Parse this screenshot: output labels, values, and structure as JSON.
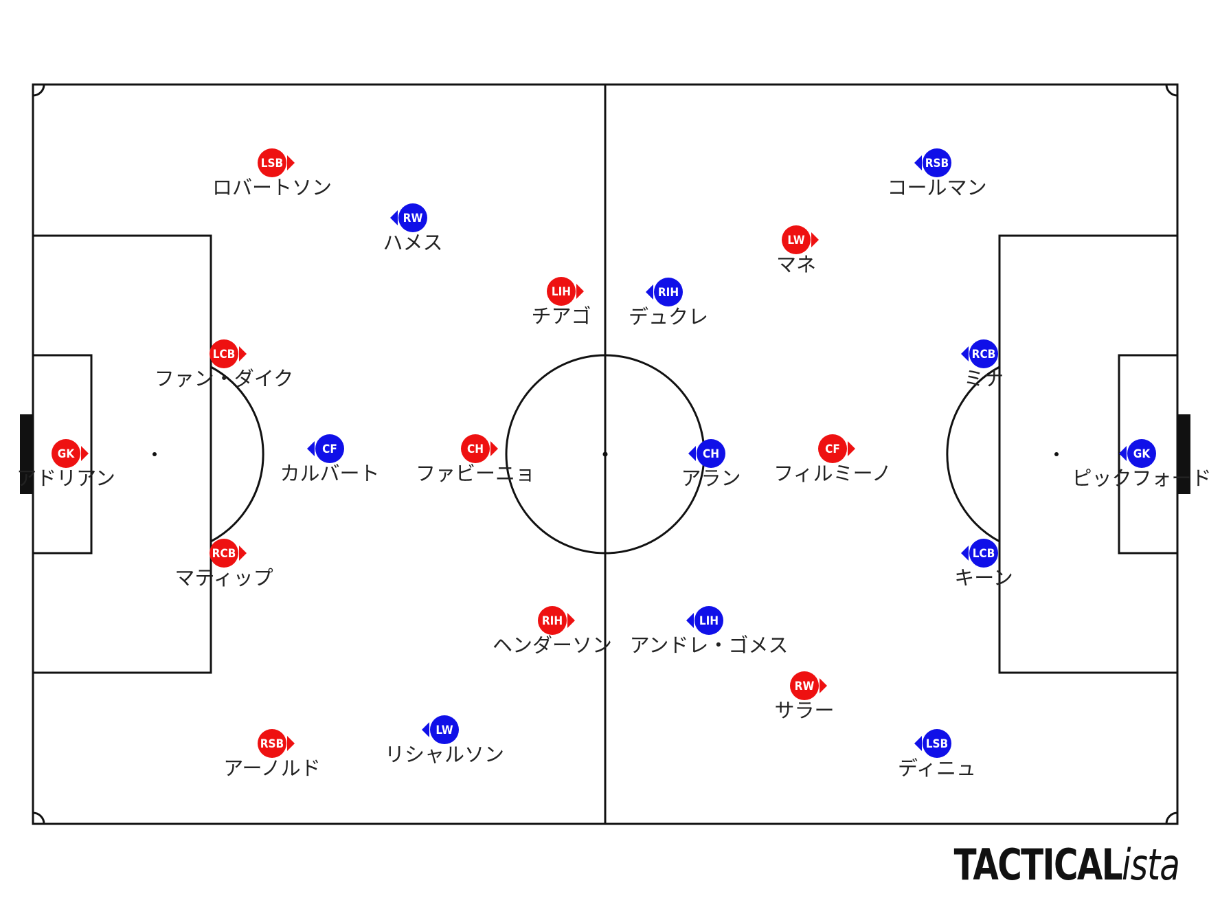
{
  "colors": {
    "home": "#ee1111",
    "away": "#1010e8",
    "lines": "#111111"
  },
  "brand": {
    "main": "TACTICAL",
    "italic": "ista"
  },
  "players": [
    {
      "team": "home",
      "pos": "LSB",
      "name": "ロバートソン",
      "dir": "right"
    },
    {
      "team": "home",
      "pos": "LCB",
      "name": "ファン・ダイク",
      "dir": "right"
    },
    {
      "team": "home",
      "pos": "GK",
      "name": "アドリアン",
      "dir": "right"
    },
    {
      "team": "home",
      "pos": "RCB",
      "name": "マティップ",
      "dir": "right"
    },
    {
      "team": "home",
      "pos": "RSB",
      "name": "アーノルド",
      "dir": "right"
    },
    {
      "team": "home",
      "pos": "LIH",
      "name": "チアゴ",
      "dir": "right"
    },
    {
      "team": "home",
      "pos": "CH",
      "name": "ファビーニョ",
      "dir": "right"
    },
    {
      "team": "home",
      "pos": "RIH",
      "name": "ヘンダーソン",
      "dir": "right"
    },
    {
      "team": "home",
      "pos": "LW",
      "name": "マネ",
      "dir": "right"
    },
    {
      "team": "home",
      "pos": "CF",
      "name": "フィルミーノ",
      "dir": "right"
    },
    {
      "team": "home",
      "pos": "RW",
      "name": "サラー",
      "dir": "right"
    },
    {
      "team": "away",
      "pos": "RW",
      "name": "ハメス",
      "dir": "left"
    },
    {
      "team": "away",
      "pos": "CF",
      "name": "カルバート",
      "dir": "left"
    },
    {
      "team": "away",
      "pos": "LW",
      "name": "リシャルソン",
      "dir": "left"
    },
    {
      "team": "away",
      "pos": "RIH",
      "name": "デュクレ",
      "dir": "left"
    },
    {
      "team": "away",
      "pos": "CH",
      "name": "アラン",
      "dir": "left"
    },
    {
      "team": "away",
      "pos": "LIH",
      "name": "アンドレ・ゴメス",
      "dir": "left"
    },
    {
      "team": "away",
      "pos": "RSB",
      "name": "コールマン",
      "dir": "left"
    },
    {
      "team": "away",
      "pos": "RCB",
      "name": "ミナ",
      "dir": "left"
    },
    {
      "team": "away",
      "pos": "GK",
      "name": "ピックフォード",
      "dir": "left"
    },
    {
      "team": "away",
      "pos": "LCB",
      "name": "キーン",
      "dir": "left"
    },
    {
      "team": "away",
      "pos": "LSB",
      "name": "ディニュ",
      "dir": "left"
    }
  ]
}
